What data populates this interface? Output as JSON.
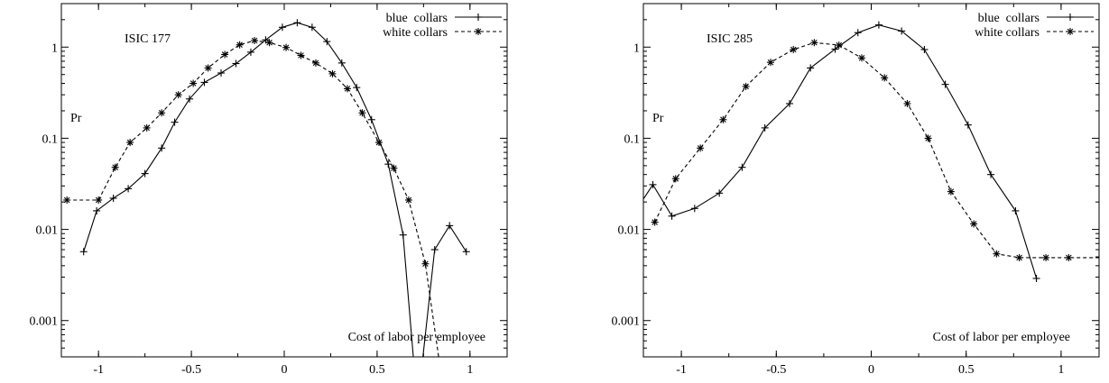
{
  "chart_data": [
    {
      "type": "line",
      "annotation": "ISIC 177",
      "ylabel": "Pr",
      "xlabel": "Cost of labor per employee",
      "yscale": "log",
      "xlim": [
        -1.2,
        1.2
      ],
      "ylim": [
        0.0004,
        3
      ],
      "xticks": [
        -1,
        -0.5,
        0,
        0.5,
        1
      ],
      "xtick_labels": [
        "-1",
        "-0.5",
        "0",
        "0.5",
        "1"
      ],
      "yticks": [
        0.001,
        0.01,
        0.1,
        1
      ],
      "ytick_labels": [
        "0.001",
        "0.01",
        "0.1",
        "1"
      ],
      "legend": "top-right",
      "series": [
        {
          "name": "blue  collars",
          "style": "solid",
          "marker": "plus",
          "x": [
            -1.08,
            -1.01,
            -0.92,
            -0.84,
            -0.75,
            -0.66,
            -0.59,
            -0.51,
            -0.43,
            -0.34,
            -0.26,
            -0.18,
            -0.1,
            -0.01,
            0.07,
            0.15,
            0.23,
            0.31,
            0.39,
            0.47,
            0.56,
            0.64,
            0.7,
            0.74,
            0.81,
            0.89,
            0.98
          ],
          "y": [
            0.0057,
            0.016,
            0.022,
            0.028,
            0.041,
            0.078,
            0.15,
            0.27,
            0.41,
            0.52,
            0.66,
            0.88,
            1.2,
            1.65,
            1.85,
            1.65,
            1.15,
            0.67,
            0.36,
            0.16,
            0.052,
            0.0087,
            0.0003,
            0.0003,
            0.006,
            0.011,
            0.0057
          ],
          "marked": [
            true,
            true,
            true,
            true,
            true,
            true,
            true,
            true,
            true,
            true,
            true,
            true,
            true,
            true,
            true,
            true,
            true,
            true,
            true,
            true,
            true,
            true,
            false,
            false,
            true,
            true,
            true
          ]
        },
        {
          "name": "white collars",
          "style": "dashed",
          "marker": "star",
          "x": [
            -1.17,
            -1.09,
            -1.0,
            -0.91,
            -0.83,
            -0.74,
            -0.66,
            -0.57,
            -0.49,
            -0.41,
            -0.32,
            -0.24,
            -0.16,
            -0.08,
            0.01,
            0.09,
            0.17,
            0.26,
            0.34,
            0.42,
            0.51,
            0.59,
            0.67,
            0.76,
            0.84,
            0.92,
            1.01,
            1.07
          ],
          "y": [
            0.021,
            0.021,
            0.021,
            0.048,
            0.09,
            0.13,
            0.19,
            0.3,
            0.4,
            0.59,
            0.83,
            1.06,
            1.18,
            1.12,
            0.99,
            0.81,
            0.67,
            0.51,
            0.35,
            0.19,
            0.09,
            0.047,
            0.021,
            0.0042,
            0.0003,
            0.0003,
            0.0003,
            0.0003
          ],
          "marked": [
            true,
            false,
            true,
            true,
            true,
            true,
            true,
            true,
            true,
            true,
            true,
            true,
            true,
            true,
            true,
            true,
            true,
            true,
            true,
            true,
            true,
            true,
            true,
            true,
            false,
            false,
            false,
            false
          ]
        }
      ]
    },
    {
      "type": "line",
      "annotation": "ISIC 285",
      "ylabel": "Pr",
      "xlabel": "Cost of labor per employee",
      "yscale": "log",
      "xlim": [
        -1.2,
        1.2
      ],
      "ylim": [
        0.0004,
        3
      ],
      "xticks": [
        -1,
        -0.5,
        0,
        0.5,
        1
      ],
      "xtick_labels": [
        "-1",
        "-0.5",
        "0",
        "0.5",
        "1"
      ],
      "yticks": [
        0.001,
        0.01,
        0.1,
        1
      ],
      "ytick_labels": [
        "0.001",
        "0.01",
        "0.1",
        "1"
      ],
      "legend": "top-right",
      "series": [
        {
          "name": "blue  collars",
          "style": "solid",
          "marker": "plus",
          "x": [
            -1.21,
            -1.15,
            -1.05,
            -0.93,
            -0.8,
            -0.68,
            -0.56,
            -0.43,
            -0.32,
            -0.19,
            -0.07,
            0.04,
            0.16,
            0.28,
            0.39,
            0.51,
            0.63,
            0.76,
            0.87
          ],
          "y": [
            0.02,
            0.031,
            0.014,
            0.017,
            0.025,
            0.048,
            0.13,
            0.24,
            0.59,
            0.95,
            1.44,
            1.75,
            1.5,
            0.94,
            0.39,
            0.14,
            0.04,
            0.016,
            0.0029
          ],
          "marked": [
            false,
            true,
            true,
            true,
            true,
            true,
            true,
            true,
            true,
            true,
            true,
            true,
            true,
            true,
            true,
            true,
            true,
            true,
            true
          ]
        },
        {
          "name": "white collars",
          "style": "dashed",
          "marker": "star",
          "x": [
            -1.14,
            -1.03,
            -0.9,
            -0.78,
            -0.66,
            -0.53,
            -0.41,
            -0.3,
            -0.17,
            -0.05,
            0.07,
            0.19,
            0.3,
            0.42,
            0.54,
            0.66,
            0.78,
            0.92,
            1.04,
            1.12,
            1.22
          ],
          "y": [
            0.012,
            0.036,
            0.078,
            0.16,
            0.37,
            0.68,
            0.94,
            1.12,
            1.05,
            0.76,
            0.46,
            0.24,
            0.1,
            0.026,
            0.0115,
            0.0054,
            0.0049,
            0.0049,
            0.0049,
            0.0049,
            0.0049
          ],
          "marked": [
            true,
            true,
            true,
            true,
            true,
            true,
            true,
            true,
            true,
            true,
            true,
            true,
            true,
            true,
            true,
            true,
            true,
            true,
            true,
            false,
            false
          ]
        }
      ]
    }
  ]
}
